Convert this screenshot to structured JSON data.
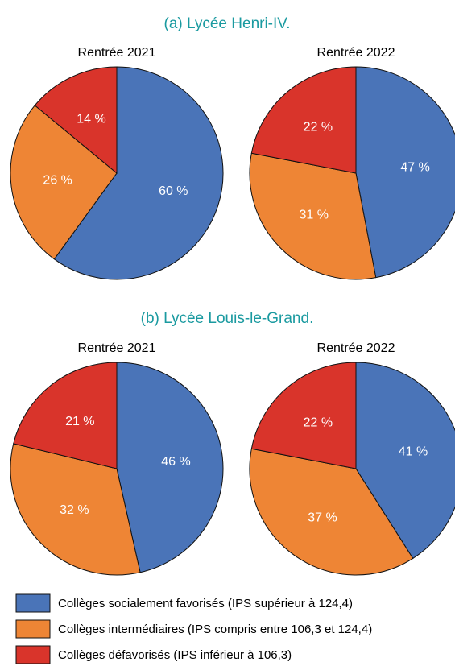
{
  "chart_data": [
    {
      "type": "pie",
      "subtitle": "(a) Lycée Henri-IV.",
      "title": "Rentrée 2021",
      "values": [
        60,
        26,
        14
      ],
      "value_labels": [
        "60 %",
        "26 %",
        "14 %"
      ],
      "colors": [
        "#4a74b8",
        "#ee8535",
        "#d9342b"
      ]
    },
    {
      "type": "pie",
      "title": "Rentrée 2022",
      "values": [
        47,
        31,
        22
      ],
      "value_labels": [
        "47 %",
        "31 %",
        "22 %"
      ],
      "colors": [
        "#4a74b8",
        "#ee8535",
        "#d9342b"
      ]
    },
    {
      "type": "pie",
      "subtitle": "(b) Lycée Louis-le-Grand.",
      "title": "Rentrée 2021",
      "values": [
        46,
        32,
        21
      ],
      "value_labels": [
        "46 %",
        "32 %",
        "21 %"
      ],
      "colors": [
        "#4a74b8",
        "#ee8535",
        "#d9342b"
      ]
    },
    {
      "type": "pie",
      "title": "Rentrée 2022",
      "values": [
        41,
        37,
        22
      ],
      "value_labels": [
        "41 %",
        "37 %",
        "22 %"
      ],
      "colors": [
        "#4a74b8",
        "#ee8535",
        "#d9342b"
      ]
    }
  ],
  "legend": {
    "labels": [
      "Collèges socialement favorisés (IPS supérieur à 124,4)",
      "Collèges intermédiaires (IPS compris entre 106,3 et 124,4)",
      "Collèges défavorisés (IPS inférieur à 106,3)"
    ],
    "colors": [
      "#4a74b8",
      "#ee8535",
      "#d9342b"
    ]
  }
}
